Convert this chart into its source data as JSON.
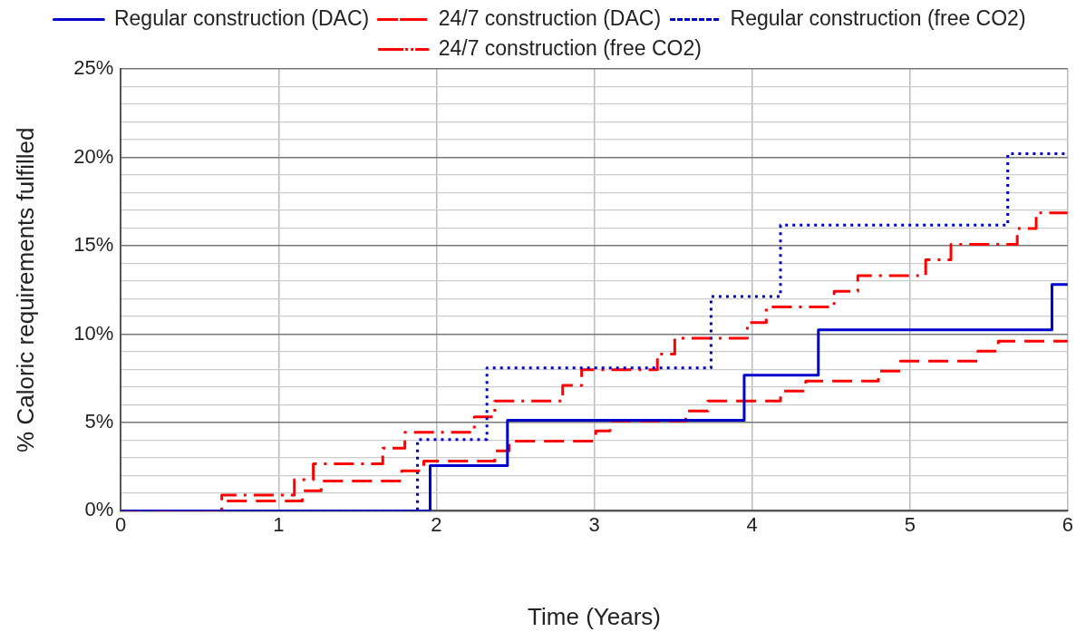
{
  "chart_data": {
    "type": "step",
    "xlabel": "Time (Years)",
    "ylabel": "% Caloric requirements fulfilled",
    "xlim": [
      0,
      6
    ],
    "xticks": [
      0,
      1,
      2,
      3,
      4,
      5,
      6
    ],
    "ylim": [
      0,
      25
    ],
    "yticks": [
      {
        "value": 0,
        "label": "0%"
      },
      {
        "value": 1,
        "label": null
      },
      {
        "value": 2,
        "label": null
      },
      {
        "value": 3,
        "label": null
      },
      {
        "value": 4,
        "label": null
      },
      {
        "value": 5,
        "label": "5%"
      },
      {
        "value": 6,
        "label": null
      },
      {
        "value": 7,
        "label": null
      },
      {
        "value": 8,
        "label": null
      },
      {
        "value": 9,
        "label": null
      },
      {
        "value": 10,
        "label": "10%"
      },
      {
        "value": 11,
        "label": null
      },
      {
        "value": 12,
        "label": null
      },
      {
        "value": 13,
        "label": null
      },
      {
        "value": 14,
        "label": null
      },
      {
        "value": 15,
        "label": "15%"
      },
      {
        "value": 16,
        "label": null
      },
      {
        "value": 17,
        "label": null
      },
      {
        "value": 18,
        "label": null
      },
      {
        "value": 19,
        "label": null
      },
      {
        "value": 20,
        "label": "20%"
      },
      {
        "value": 21,
        "label": null
      },
      {
        "value": 22,
        "label": null
      },
      {
        "value": 23,
        "label": null
      },
      {
        "value": 24,
        "label": null
      },
      {
        "value": 25,
        "label": "25%"
      }
    ],
    "grid": true,
    "legend": "top",
    "marker": "none",
    "series": [
      {
        "name": "Regular construction (DAC)",
        "color": "#0000cc",
        "line_style": "solid",
        "x": [
          0,
          1.96,
          2.45,
          3.95,
          4.42,
          5.9,
          6
        ],
        "values": [
          0,
          2.56,
          5.12,
          7.68,
          10.24,
          12.8,
          12.8
        ]
      },
      {
        "name": "24/7 construction (DAC)",
        "color": "#ff0000",
        "line_style": "dashed",
        "x": [
          0,
          0.67,
          1.15,
          1.27,
          1.78,
          1.92,
          2.37,
          2.46,
          3.01,
          3.1,
          3.58,
          3.72,
          4.18,
          4.34,
          4.8,
          4.94,
          5.43,
          5.56,
          6
        ],
        "values": [
          0,
          0.56,
          1.13,
          1.69,
          2.26,
          2.82,
          3.39,
          3.95,
          4.52,
          5.08,
          5.65,
          6.21,
          6.78,
          7.34,
          7.91,
          8.47,
          9.04,
          9.6,
          9.6
        ]
      },
      {
        "name": "Regular construction (free CO2)",
        "color": "#0000cc",
        "line_style": "dotted",
        "x": [
          0,
          1.88,
          2.32,
          3.74,
          4.18,
          5.62,
          6
        ],
        "values": [
          0,
          4.04,
          8.08,
          12.12,
          16.16,
          20.2,
          20.2
        ]
      },
      {
        "name": "24/7 construction (free CO2)",
        "color": "#ff0000",
        "line_style": "dashdot",
        "x": [
          0,
          0.64,
          1.1,
          1.22,
          1.66,
          1.8,
          2.24,
          2.37,
          2.8,
          2.92,
          3.4,
          3.51,
          3.97,
          4.09,
          4.52,
          4.67,
          5.1,
          5.26,
          5.68,
          5.8,
          6
        ],
        "values": [
          0,
          0.89,
          1.77,
          2.66,
          3.55,
          4.44,
          5.32,
          6.21,
          7.1,
          7.99,
          8.87,
          9.76,
          10.65,
          11.53,
          12.42,
          13.31,
          14.2,
          15.08,
          15.97,
          16.86,
          16.86
        ]
      }
    ]
  }
}
